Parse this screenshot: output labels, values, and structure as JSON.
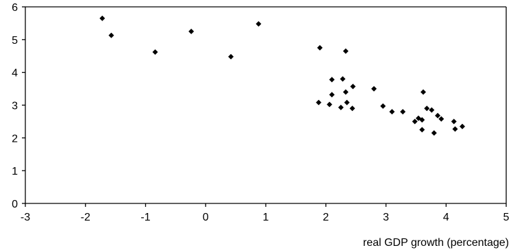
{
  "chart_data": {
    "type": "scatter",
    "title": "",
    "xlabel": "real GDP growth (percentage)",
    "ylabel": "",
    "xlim": [
      -3,
      5
    ],
    "ylim": [
      0,
      6
    ],
    "xticks": [
      "-3",
      "-2",
      "-1",
      "0",
      "1",
      "2",
      "3",
      "4",
      "5"
    ],
    "yticks": [
      "0",
      "1",
      "2",
      "3",
      "4",
      "5",
      "6"
    ],
    "grid": false,
    "legend": "none",
    "marker_color": "#000000",
    "series": [
      {
        "points": [
          [
            -1.72,
            5.65
          ],
          [
            -1.57,
            5.13
          ],
          [
            -0.84,
            4.62
          ],
          [
            -0.24,
            5.25
          ],
          [
            0.42,
            4.48
          ],
          [
            0.88,
            5.48
          ],
          [
            1.9,
            4.75
          ],
          [
            2.33,
            4.65
          ],
          [
            2.1,
            3.78
          ],
          [
            2.28,
            3.8
          ],
          [
            2.45,
            3.57
          ],
          [
            2.33,
            3.4
          ],
          [
            2.1,
            3.32
          ],
          [
            1.88,
            3.08
          ],
          [
            2.06,
            3.02
          ],
          [
            2.35,
            3.08
          ],
          [
            2.25,
            2.93
          ],
          [
            2.44,
            2.9
          ],
          [
            2.8,
            3.5
          ],
          [
            2.95,
            2.97
          ],
          [
            3.1,
            2.8
          ],
          [
            3.28,
            2.8
          ],
          [
            3.62,
            3.4
          ],
          [
            3.68,
            2.9
          ],
          [
            3.76,
            2.85
          ],
          [
            3.86,
            2.68
          ],
          [
            3.92,
            2.58
          ],
          [
            3.48,
            2.5
          ],
          [
            3.54,
            2.6
          ],
          [
            3.6,
            2.55
          ],
          [
            3.6,
            2.25
          ],
          [
            3.8,
            2.15
          ],
          [
            4.13,
            2.5
          ],
          [
            4.15,
            2.27
          ],
          [
            4.27,
            2.35
          ]
        ]
      }
    ]
  }
}
